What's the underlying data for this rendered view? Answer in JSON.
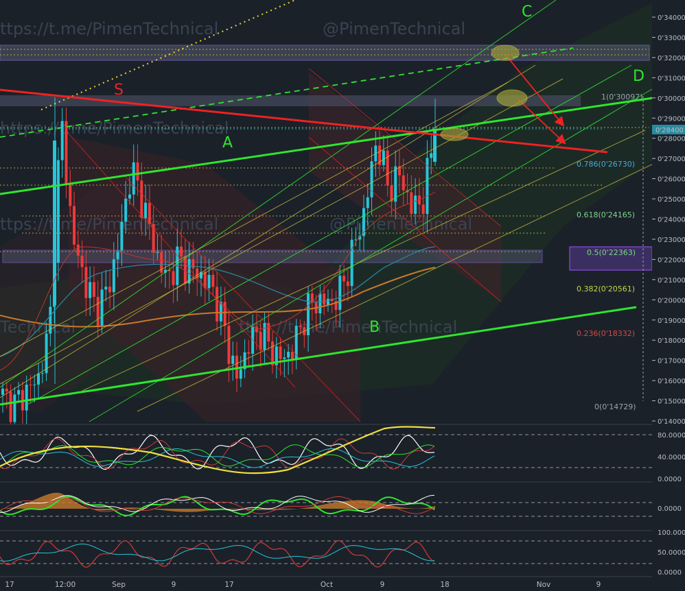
{
  "watermarks": [
    "ttps://t.me/PimenTechnical",
    "@PimenTechnical",
    "ttps://t.me/PimenTechnical",
    "@PimenTechnical",
    "Technical",
    "ttps://t.me/PimenTechnical",
    "https://t.me/PimenTechnical"
  ],
  "pattern_labels": {
    "s": "S",
    "a": "A",
    "b": "B",
    "c": "C",
    "d": "D"
  },
  "fib_levels": [
    {
      "label": "1(0'30097)",
      "color": "#9aa3ad"
    },
    {
      "label": "0.786(0'26730)",
      "color": "#4aa8d8"
    },
    {
      "label": "0.618(0'24165)",
      "color": "#7fd68a"
    },
    {
      "label": "0.5(0'22363)",
      "color": "#7fd68a"
    },
    {
      "label": "0.382(0'20561)",
      "color": "#c2d84a"
    },
    {
      "label": "0.236(0'18332)",
      "color": "#d24a4a"
    },
    {
      "label": "0(0'14729)",
      "color": "#9aa3ad"
    }
  ],
  "price_axis": [
    "0'34000",
    "0'33000",
    "0'32000",
    "0'31000",
    "0'30000",
    "0'29000",
    "0'28000",
    "0'27000",
    "0'26000",
    "0'25000",
    "0'24000",
    "0'23000",
    "0'22000",
    "0'21000",
    "0'20000",
    "0'19000",
    "0'18000",
    "0'17000",
    "0'16000",
    "0'15000",
    "0'14000"
  ],
  "current_price": "0'28400",
  "panel1_axis": [
    "80.0000",
    "40.0000",
    "0.0000"
  ],
  "panel2_axis": [
    "0.0000"
  ],
  "panel3_axis": [
    "100.0000",
    "50.0000",
    "0.0000"
  ],
  "x_axis": [
    "17",
    "12:00",
    "Sep",
    "9",
    "17",
    "Oct",
    "9",
    "18",
    "Nov",
    "9"
  ],
  "colors": {
    "up": "#26c6da",
    "down": "#ef3a3a",
    "green_line": "#2ee62e",
    "red_line": "#ee2222"
  },
  "chart_data": {
    "type": "candlestick",
    "title": "",
    "xlabel": "",
    "ylabel": "",
    "ylim": [
      0.14,
      0.345
    ],
    "candles_close_sample": [
      0.152,
      0.148,
      0.155,
      0.16,
      0.185,
      0.29,
      0.23,
      0.21,
      0.195,
      0.205,
      0.23,
      0.265,
      0.248,
      0.225,
      0.21,
      0.22,
      0.215,
      0.212,
      0.205,
      0.185,
      0.16,
      0.178,
      0.185,
      0.175,
      0.17,
      0.178,
      0.195,
      0.2,
      0.198,
      0.205,
      0.225,
      0.245,
      0.28,
      0.255,
      0.262,
      0.245,
      0.25,
      0.285
    ],
    "last_price": 0.284,
    "fib_retracement": [
      {
        "ratio": 1,
        "price": 0.30097
      },
      {
        "ratio": 0.786,
        "price": 0.2673
      },
      {
        "ratio": 0.618,
        "price": 0.24165
      },
      {
        "ratio": 0.5,
        "price": 0.22363
      },
      {
        "ratio": 0.382,
        "price": 0.20561
      },
      {
        "ratio": 0.236,
        "price": 0.18332
      },
      {
        "ratio": 0,
        "price": 0.14729
      }
    ],
    "indicator_panels": [
      {
        "ticks": [
          80,
          40,
          0
        ]
      },
      {
        "ticks": [
          0
        ]
      },
      {
        "ticks": [
          100,
          50,
          0
        ]
      }
    ]
  }
}
